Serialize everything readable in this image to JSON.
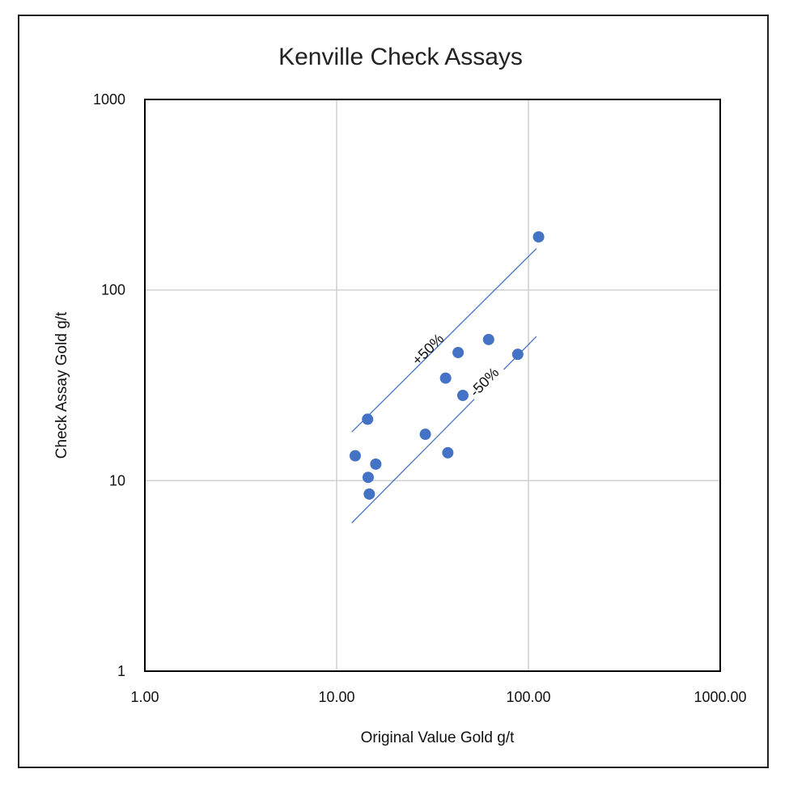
{
  "chart_data": {
    "type": "scatter",
    "title": "Kenville Check Assays",
    "xlabel": "Original Value Gold g/t",
    "ylabel": "Check Assay Gold g/t",
    "x_scale": "log",
    "y_scale": "log",
    "xlim": [
      1,
      1000
    ],
    "ylim": [
      1,
      1000
    ],
    "x_tick_labels": [
      "1.00",
      "10.00",
      "100.00",
      "1000.00"
    ],
    "y_tick_labels": [
      "1",
      "10",
      "100",
      "1000"
    ],
    "grid": true,
    "marker_color": "#4472C4",
    "line_color": "#4472C4",
    "series": [
      {
        "points": [
          {
            "x": 12.5,
            "y": 13.5
          },
          {
            "x": 14.5,
            "y": 21.0
          },
          {
            "x": 14.6,
            "y": 10.4
          },
          {
            "x": 14.8,
            "y": 8.5
          },
          {
            "x": 16.0,
            "y": 12.2
          },
          {
            "x": 29.0,
            "y": 17.5
          },
          {
            "x": 37.0,
            "y": 34.5
          },
          {
            "x": 38.0,
            "y": 14.0
          },
          {
            "x": 43.0,
            "y": 47.0
          },
          {
            "x": 45.5,
            "y": 28.0
          },
          {
            "x": 62.0,
            "y": 55.0
          },
          {
            "x": 88.0,
            "y": 46.0
          },
          {
            "x": 113.0,
            "y": 190.0
          }
        ]
      }
    ],
    "reference_lines": [
      {
        "label": "+50%",
        "x": [
          12.0,
          110.0
        ],
        "y": [
          18.0,
          165.0
        ]
      },
      {
        "label": "-50%",
        "x": [
          12.0,
          110.0
        ],
        "y": [
          6.0,
          57.0
        ]
      }
    ]
  }
}
